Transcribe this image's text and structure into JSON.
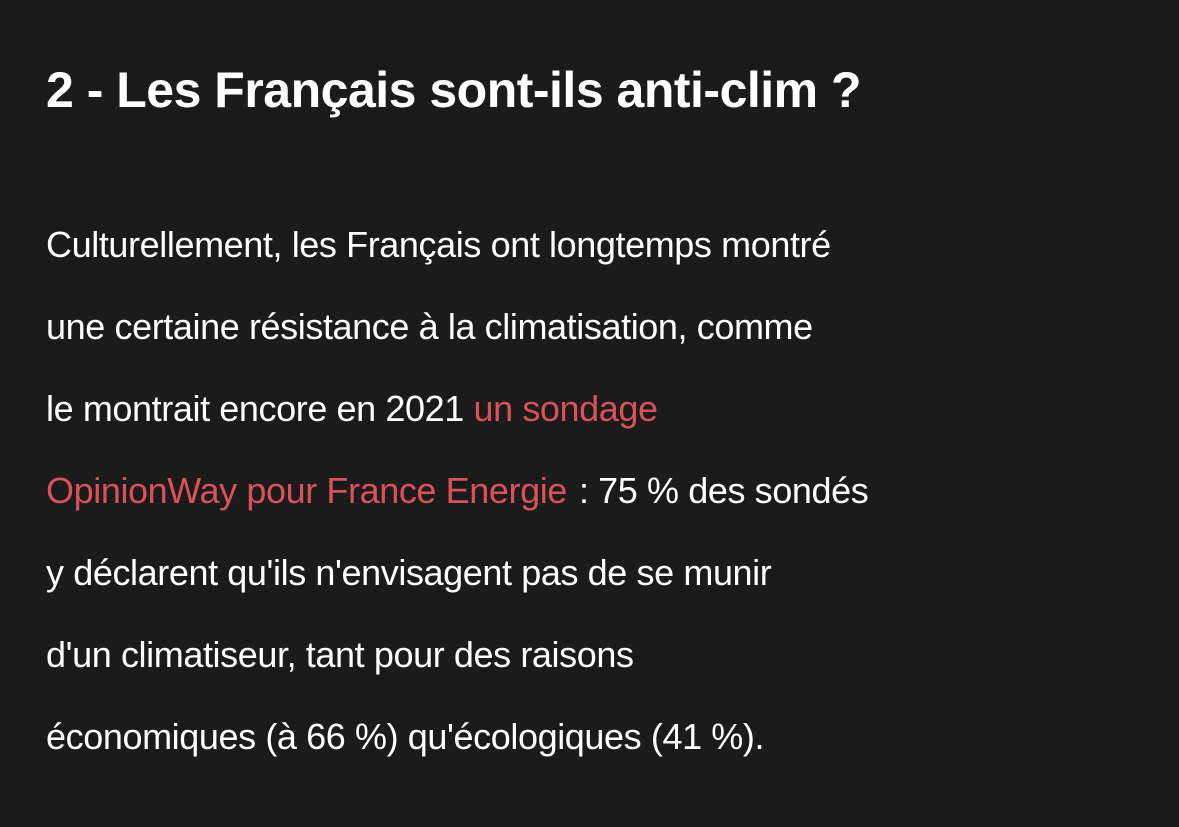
{
  "article": {
    "heading": "2 - Les Français sont-ils anti-clim ?",
    "body": {
      "line1": "Culturellement, les Français ont longtemps montré",
      "line2": "une certaine résistance à la climatisation, comme",
      "line3_before_link": "le montrait encore en 2021 ",
      "link_part1": "un sondage",
      "link_part2": "OpinionWay pour France Energie",
      "line4_after_link": ": 75 % des sondés",
      "line5": "y déclarent qu'ils n'envisagent pas de se munir",
      "line6": "d'un climatiseur, tant pour des raisons",
      "line7": "économiques (à 66 %) qu'écologiques (41 %)."
    }
  },
  "colors": {
    "background": "#1b1b1b",
    "text": "#ffffff",
    "link": "#d9525a"
  }
}
